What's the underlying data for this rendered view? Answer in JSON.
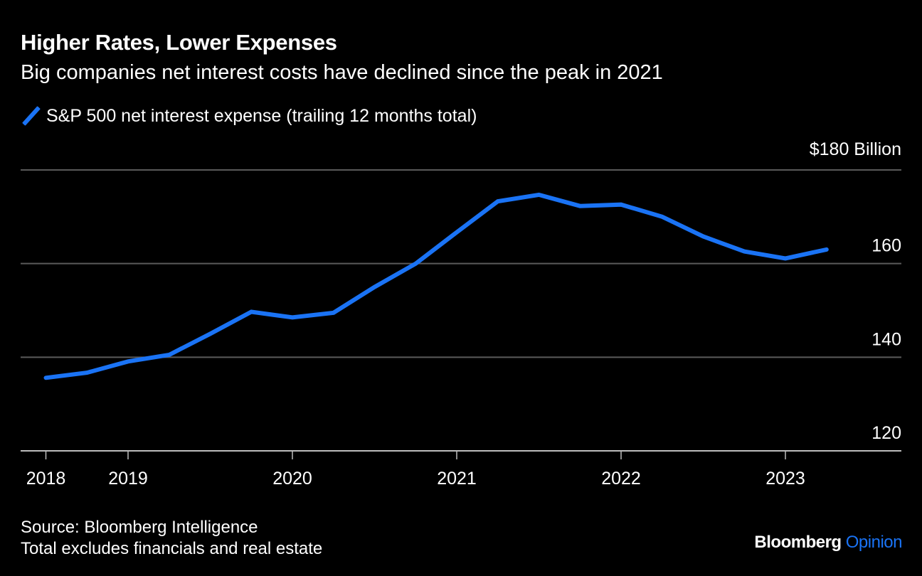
{
  "header": {
    "title": "Higher Rates, Lower Expenses",
    "subtitle": "Big companies net interest costs have declined since the peak in 2021"
  },
  "footer": {
    "source": "Source: Bloomberg Intelligence",
    "note": "Total excludes financials and real estate",
    "brand_main": "Bloomberg",
    "brand_accent": "Opinion"
  },
  "colors": {
    "background": "#000000",
    "series": "#1a73f5",
    "grid": "#5a5a5a",
    "axis": "#bdbdbd",
    "text": "#ffffff"
  },
  "chart_data": {
    "type": "line",
    "title": "Higher Rates, Lower Expenses",
    "subtitle": "Big companies net interest costs have declined since the peak in 2021",
    "xlabel": "",
    "ylabel": "$ Billion",
    "unit_label": "$180 Billion",
    "ylim": [
      120,
      180
    ],
    "yticks": [
      120,
      140,
      160,
      180
    ],
    "ytick_labels": [
      "120",
      "140",
      "160",
      "$180 Billion"
    ],
    "xticks": [
      "2018",
      "2019",
      "2020",
      "2021",
      "2022",
      "2023"
    ],
    "xtick_positions": [
      2018.5,
      2019.0,
      2020.0,
      2021.0,
      2022.0,
      2023.0
    ],
    "xlim": [
      2018.35,
      2023.75
    ],
    "grid": true,
    "legend": "top-left",
    "series": [
      {
        "name": "S&P 500 net interest expense (trailing 12 months total)",
        "x": [
          2018.5,
          2018.75,
          2019.0,
          2019.25,
          2019.5,
          2019.75,
          2020.0,
          2020.25,
          2020.5,
          2020.75,
          2021.0,
          2021.25,
          2021.5,
          2021.75,
          2022.0,
          2022.25,
          2022.5,
          2022.75,
          2023.0,
          2023.25
        ],
        "values": [
          135.6,
          136.7,
          139.1,
          140.5,
          145.0,
          149.7,
          148.5,
          149.5,
          155.0,
          160.0,
          166.7,
          173.3,
          174.7,
          172.3,
          172.6,
          170.0,
          165.8,
          162.6,
          161.1,
          163.0
        ]
      }
    ]
  }
}
